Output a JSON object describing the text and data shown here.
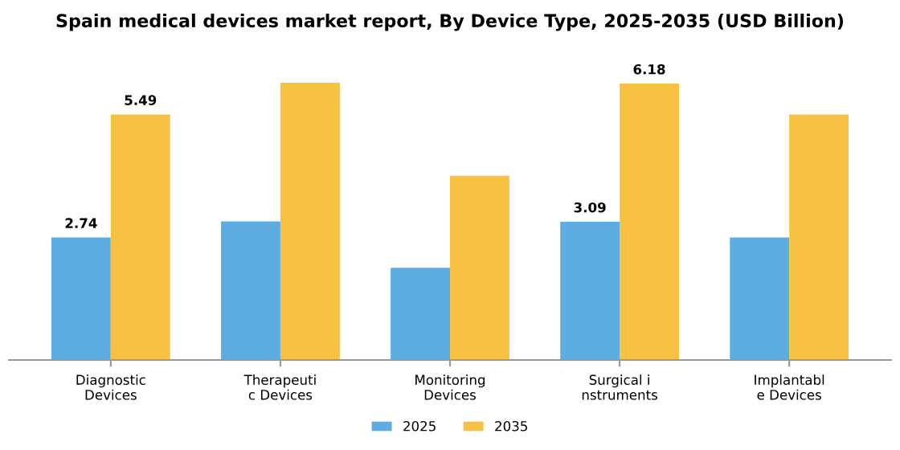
{
  "chart_data": {
    "type": "bar",
    "title": "Spain medical devices market report, By Device Type, 2025-2035 (USD Billion)",
    "categories": [
      "Diagnostic\nDevices",
      "Therapeuti\nc Devices",
      "Monitoring\nDevices",
      "Surgical i\nnstruments",
      "Implantabl\ne Devices"
    ],
    "series": [
      {
        "name": "2025",
        "color": "#5dade2",
        "values": [
          2.74,
          3.1,
          2.06,
          3.09,
          2.74
        ],
        "value_labels": [
          "2.74",
          null,
          null,
          "3.09",
          null
        ]
      },
      {
        "name": "2035",
        "color": "#f7c242",
        "values": [
          5.49,
          6.2,
          4.12,
          6.18,
          5.49
        ],
        "value_labels": [
          "5.49",
          null,
          null,
          "6.18",
          null
        ]
      }
    ],
    "legend": "bottom"
  }
}
